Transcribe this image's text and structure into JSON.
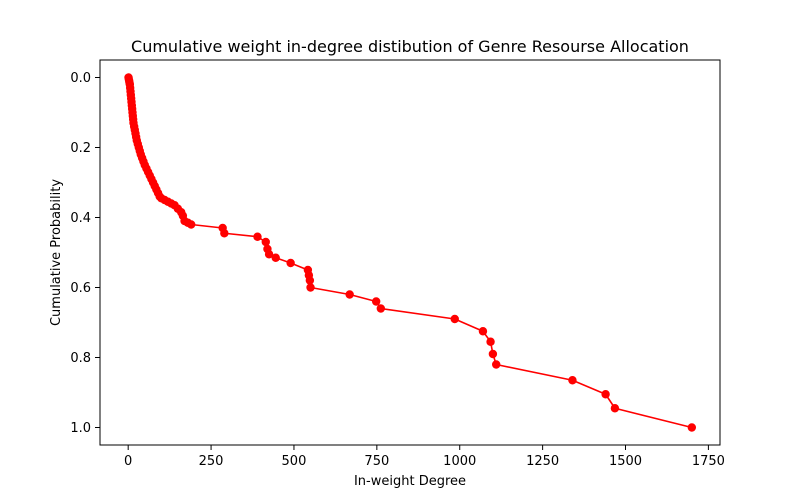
{
  "chart_data": {
    "type": "line",
    "title": "Cumulative weight in-degree distibution of Genre Resourse Allocation",
    "xlabel": "In-weight Degree",
    "ylabel": "Cumulative Probability",
    "xlim": [
      -85,
      1785
    ],
    "ylim": [
      1.05,
      -0.05
    ],
    "y_inverted": true,
    "grid": false,
    "x_ticks": [
      0,
      250,
      500,
      750,
      1000,
      1250,
      1500,
      1750
    ],
    "y_ticks": [
      0.0,
      0.2,
      0.4,
      0.6,
      0.8,
      1.0
    ],
    "x_tick_labels": [
      "0",
      "250",
      "500",
      "750",
      "1000",
      "1250",
      "1500",
      "1750"
    ],
    "y_tick_labels": [
      "0.0",
      "0.2",
      "0.4",
      "0.6",
      "0.8",
      "1.0"
    ],
    "series": [
      {
        "color": "#ff0000",
        "marker": "circle",
        "x": [
          1,
          2,
          3,
          4,
          5,
          6,
          7,
          8,
          9,
          10,
          11,
          12,
          13,
          14,
          15,
          16,
          18,
          20,
          22,
          24,
          26,
          29,
          32,
          35,
          38,
          42,
          46,
          50,
          55,
          60,
          65,
          70,
          75,
          80,
          85,
          90,
          95,
          100,
          110,
          120,
          130,
          140,
          150,
          160,
          165,
          170,
          180,
          190,
          285,
          290,
          390,
          415,
          420,
          425,
          445,
          490,
          542,
          545,
          548,
          550,
          668,
          748,
          762,
          985,
          1070,
          1093,
          1100,
          1110,
          1340,
          1440,
          1468,
          1700
        ],
        "y": [
          0.0,
          0.005,
          0.01,
          0.015,
          0.02,
          0.03,
          0.04,
          0.05,
          0.06,
          0.07,
          0.08,
          0.09,
          0.1,
          0.11,
          0.12,
          0.13,
          0.14,
          0.15,
          0.16,
          0.17,
          0.18,
          0.19,
          0.2,
          0.21,
          0.22,
          0.23,
          0.24,
          0.25,
          0.26,
          0.27,
          0.28,
          0.29,
          0.3,
          0.31,
          0.32,
          0.33,
          0.34,
          0.345,
          0.35,
          0.355,
          0.36,
          0.365,
          0.375,
          0.385,
          0.395,
          0.41,
          0.415,
          0.42,
          0.43,
          0.445,
          0.455,
          0.47,
          0.49,
          0.505,
          0.515,
          0.53,
          0.55,
          0.565,
          0.58,
          0.6,
          0.62,
          0.64,
          0.66,
          0.69,
          0.725,
          0.755,
          0.79,
          0.82,
          0.865,
          0.905,
          0.945,
          1.0
        ]
      }
    ]
  }
}
